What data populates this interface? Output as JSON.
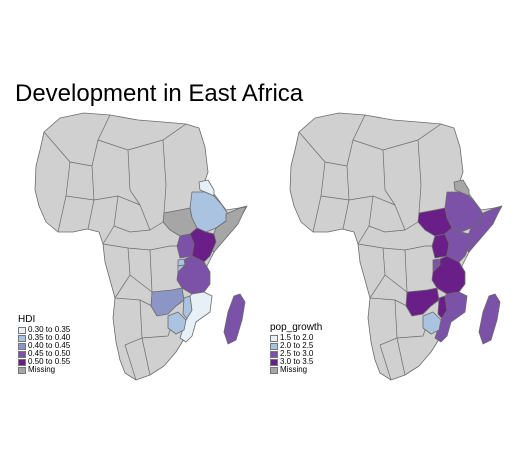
{
  "title": "Development in East Africa",
  "colors": {
    "land": "#d0d0d0",
    "border": "#6b6b6b",
    "c1": "#e8f0f7",
    "c2": "#aac3e0",
    "c3": "#8c96c6",
    "c4": "#7b52a8",
    "c5": "#6a1f88",
    "missing": "#a6a6a6"
  },
  "maps": [
    {
      "name": "hdi",
      "legend": {
        "title": "HDI",
        "items": [
          {
            "label": "0.30 to 0.35",
            "color": "#e8f0f7"
          },
          {
            "label": "0.35 to 0.40",
            "color": "#aac3e0"
          },
          {
            "label": "0.40 to 0.45",
            "color": "#8c96c6"
          },
          {
            "label": "0.45 to 0.50",
            "color": "#7b52a8"
          },
          {
            "label": "0.50 to 0.55",
            "color": "#6a1f88"
          },
          {
            "label": "Missing",
            "color": "#a6a6a6"
          }
        ]
      },
      "regions": {
        "eritrea": "#e8f0f7",
        "ethiopia": "#aac3e0",
        "south_sudan": "#a6a6a6",
        "somalia": "#a6a6a6",
        "uganda": "#7b52a8",
        "kenya": "#6a1f88",
        "rwanda": "#aac3e0",
        "burundi": "#aac3e0",
        "tanzania": "#7b52a8",
        "zambia": "#8c96c6",
        "malawi": "#aac3e0",
        "mozambique": "#e8f0f7",
        "zimbabwe": "#aac3e0",
        "madagascar": "#7b52a8"
      }
    },
    {
      "name": "pop_growth",
      "legend": {
        "title": "pop_growth",
        "items": [
          {
            "label": "1.5 to 2.0",
            "color": "#e8f0f7"
          },
          {
            "label": "2.0 to 2.5",
            "color": "#aac3e0"
          },
          {
            "label": "2.5 to 3.0",
            "color": "#7b52a8"
          },
          {
            "label": "3.0 to 3.5",
            "color": "#6a1f88"
          },
          {
            "label": "Missing",
            "color": "#a6a6a6"
          }
        ]
      },
      "regions": {
        "eritrea": "#a6a6a6",
        "ethiopia": "#7b52a8",
        "south_sudan": "#6a1f88",
        "somalia": "#7b52a8",
        "uganda": "#6a1f88",
        "kenya": "#7b52a8",
        "rwanda": "#7b52a8",
        "burundi": "#7b52a8",
        "tanzania": "#6a1f88",
        "zambia": "#6a1f88",
        "malawi": "#6a1f88",
        "mozambique": "#7b52a8",
        "zimbabwe": "#aac3e0",
        "madagascar": "#7b52a8"
      }
    }
  ]
}
